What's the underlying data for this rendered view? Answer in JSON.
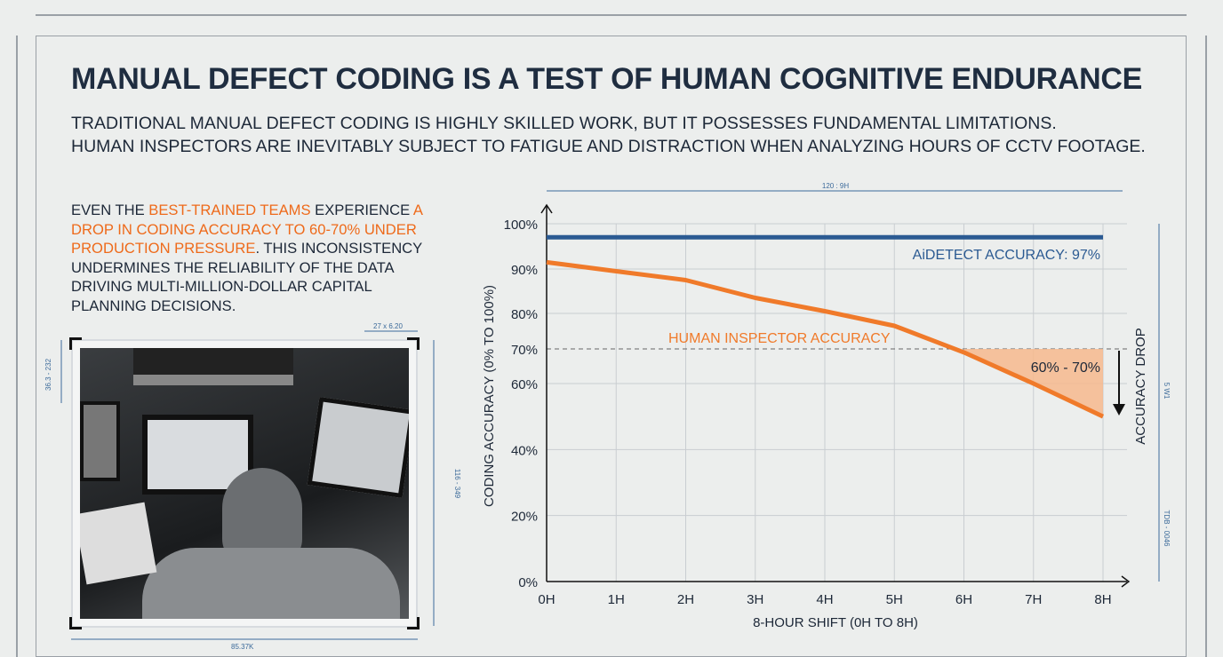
{
  "header": {
    "title": "MANUAL DEFECT CODING IS A TEST OF HUMAN COGNITIVE ENDURANCE",
    "subtitle_line1": "TRADITIONAL MANUAL DEFECT CODING IS HIGHLY SKILLED WORK, BUT IT POSSESSES FUNDAMENTAL LIMITATIONS.",
    "subtitle_line2": "HUMAN INSPECTORS ARE INEVITABLY SUBJECT TO FATIGUE AND DISTRACTION WHEN ANALYZING HOURS OF CCTV FOOTAGE."
  },
  "body": {
    "p1": "EVEN THE ",
    "h1": "BEST-TRAINED TEAMS",
    "p2": " EXPERIENCE ",
    "h2": "A DROP IN CODING ACCURACY TO 60-70% UNDER PRODUCTION PRESSURE",
    "p3": ". THIS INCONSISTENCY UNDERMINES THE RELIABILITY OF THE DATA DRIVING MULTI-MILLION-DOLLAR CAPITAL PLANNING DECISIONS."
  },
  "photo": {
    "dim_top": "27 x 6.20",
    "dim_left": "36.3 - 232",
    "dim_right": "116 - 349",
    "dim_bottom": "85.37K"
  },
  "chart_dims": {
    "top": "120 : 9H",
    "right_top": "5 W1",
    "right_bottom": "TDB - 0046"
  },
  "colors": {
    "ai": "#2b5a92",
    "human": "#f07a2a",
    "shade": "#f7b98d"
  },
  "chart_data": {
    "type": "line",
    "x": [
      "0H",
      "1H",
      "2H",
      "3H",
      "4H",
      "5H",
      "6H",
      "7H",
      "8H"
    ],
    "series": [
      {
        "name": "AiDETECT ACCURACY: 97%",
        "values": [
          97,
          97,
          97,
          97,
          97,
          97,
          97,
          97,
          97
        ]
      },
      {
        "name": "HUMAN INSPECTOR ACCURACY",
        "values": [
          91.5,
          89.5,
          87.5,
          83.5,
          80.5,
          76.5,
          69,
          60,
          50
        ]
      }
    ],
    "yticks": [
      0,
      20,
      40,
      60,
      70,
      80,
      90,
      100
    ],
    "ytick_labels": [
      "0%",
      "20%",
      "40%",
      "60%",
      "70%",
      "80%",
      "90%",
      "100%"
    ],
    "ylim": [
      0,
      100
    ],
    "xlabel": "8-HOUR SHIFT (0H TO 8H)",
    "ylabel": "CODING ACCURACY (0% TO 100%)",
    "reference_line": 70,
    "annotations": {
      "band": "60% - 70%",
      "drop": "ACCURACY DROP"
    },
    "grid": true
  }
}
